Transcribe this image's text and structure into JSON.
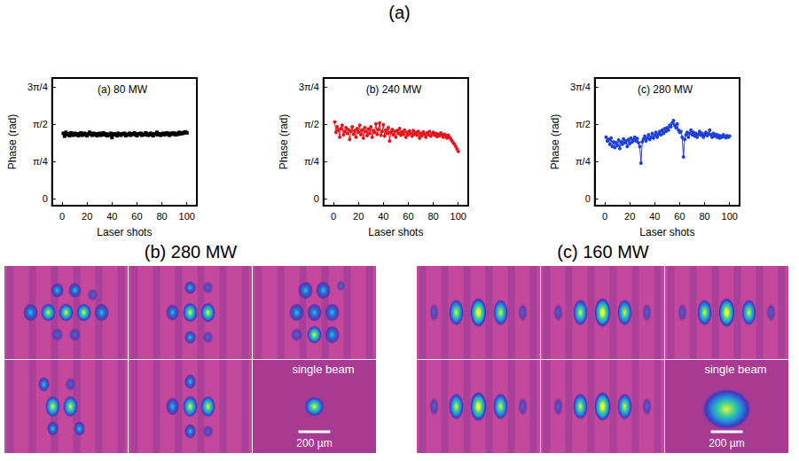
{
  "figure_title": "(a)",
  "chart_data": [
    {
      "type": "line",
      "title": "(a) 80 MW",
      "x_label": "Laser shots",
      "y_label": "Phase (rad)",
      "xlim": [
        -8,
        108
      ],
      "xticks": [
        0,
        20,
        40,
        60,
        80,
        100
      ],
      "ylim": [
        -0.15,
        2.55
      ],
      "yticks": [
        0,
        {
          "value": 0.7853981634,
          "label": "π/4"
        },
        {
          "value": 1.5707963268,
          "label": "π/2"
        },
        {
          "value": 2.3561944902,
          "label": "3π/4"
        }
      ],
      "grid": false,
      "x": [
        1,
        2,
        3,
        4,
        5,
        6,
        7,
        8,
        9,
        10,
        11,
        12,
        13,
        14,
        15,
        16,
        17,
        18,
        19,
        20,
        21,
        22,
        23,
        24,
        25,
        26,
        27,
        28,
        29,
        30,
        31,
        32,
        33,
        34,
        35,
        36,
        37,
        38,
        39,
        40,
        41,
        42,
        43,
        44,
        45,
        46,
        47,
        48,
        49,
        50,
        51,
        52,
        53,
        54,
        55,
        56,
        57,
        58,
        59,
        60,
        61,
        62,
        63,
        64,
        65,
        66,
        67,
        68,
        69,
        70,
        71,
        72,
        73,
        74,
        75,
        76,
        77,
        78,
        79,
        80,
        81,
        82,
        83,
        84,
        85,
        86,
        87,
        88,
        89,
        90,
        91,
        92,
        93,
        94,
        95,
        96,
        97,
        98,
        99,
        100
      ],
      "series": [
        {
          "color": "#000000",
          "marker": "square",
          "line_style": "solid",
          "values": [
            1.38,
            1.32,
            1.4,
            1.35,
            1.37,
            1.33,
            1.39,
            1.36,
            1.34,
            1.38,
            1.35,
            1.37,
            1.33,
            1.36,
            1.39,
            1.34,
            1.36,
            1.38,
            1.35,
            1.33,
            1.37,
            1.4,
            1.36,
            1.34,
            1.38,
            1.35,
            1.37,
            1.33,
            1.36,
            1.38,
            1.34,
            1.36,
            1.39,
            1.35,
            1.37,
            1.33,
            1.36,
            1.34,
            1.38,
            1.29,
            1.35,
            1.37,
            1.36,
            1.33,
            1.38,
            1.35,
            1.34,
            1.37,
            1.36,
            1.38,
            1.33,
            1.36,
            1.35,
            1.38,
            1.34,
            1.37,
            1.36,
            1.39,
            1.35,
            1.33,
            1.37,
            1.36,
            1.38,
            1.34,
            1.36,
            1.35,
            1.39,
            1.37,
            1.34,
            1.36,
            1.38,
            1.35,
            1.33,
            1.37,
            1.36,
            1.4,
            1.35,
            1.37,
            1.34,
            1.36,
            1.38,
            1.35,
            1.37,
            1.39,
            1.36,
            1.34,
            1.38,
            1.36,
            1.39,
            1.37,
            1.35,
            1.38,
            1.36,
            1.4,
            1.37,
            1.39,
            1.38,
            1.4,
            1.41,
            1.39
          ]
        }
      ]
    },
    {
      "type": "line",
      "title": "(b) 240 MW",
      "x_label": "Laser shots",
      "y_label": "Phase (rad)",
      "xlim": [
        -8,
        108
      ],
      "xticks": [
        0,
        20,
        40,
        60,
        80,
        100
      ],
      "ylim": [
        -0.15,
        2.55
      ],
      "yticks": [
        0,
        {
          "value": 0.7853981634,
          "label": "π/4"
        },
        {
          "value": 1.5707963268,
          "label": "π/2"
        },
        {
          "value": 2.3561944902,
          "label": "3π/4"
        }
      ],
      "grid": false,
      "x": [
        1,
        2,
        3,
        4,
        5,
        6,
        7,
        8,
        9,
        10,
        11,
        12,
        13,
        14,
        15,
        16,
        17,
        18,
        19,
        20,
        21,
        22,
        23,
        24,
        25,
        26,
        27,
        28,
        29,
        30,
        31,
        32,
        33,
        34,
        35,
        36,
        37,
        38,
        39,
        40,
        41,
        42,
        43,
        44,
        45,
        46,
        47,
        48,
        49,
        50,
        51,
        52,
        53,
        54,
        55,
        56,
        57,
        58,
        59,
        60,
        61,
        62,
        63,
        64,
        65,
        66,
        67,
        68,
        69,
        70,
        71,
        72,
        73,
        74,
        75,
        76,
        77,
        78,
        79,
        80,
        81,
        82,
        83,
        84,
        85,
        86,
        87,
        88,
        89,
        90,
        91,
        92,
        93,
        94,
        95,
        96,
        97,
        98,
        99,
        100
      ],
      "series": [
        {
          "color": "#e8141c",
          "marker": "circle",
          "line_style": "solid",
          "values": [
            1.62,
            1.4,
            1.52,
            1.45,
            1.3,
            1.48,
            1.55,
            1.35,
            1.42,
            1.5,
            1.38,
            1.46,
            1.25,
            1.42,
            1.52,
            1.36,
            1.44,
            1.3,
            1.48,
            1.4,
            1.55,
            1.35,
            1.45,
            1.28,
            1.5,
            1.42,
            1.33,
            1.47,
            1.38,
            1.52,
            1.3,
            1.44,
            1.4,
            1.58,
            1.36,
            1.46,
            1.6,
            1.34,
            1.42,
            1.56,
            1.32,
            1.45,
            1.38,
            1.5,
            1.22,
            1.4,
            1.46,
            1.35,
            1.42,
            1.3,
            1.44,
            1.38,
            1.48,
            1.34,
            1.41,
            1.36,
            1.45,
            1.3,
            1.4,
            1.35,
            1.43,
            1.38,
            1.32,
            1.44,
            1.36,
            1.4,
            1.34,
            1.42,
            1.28,
            1.38,
            1.33,
            1.41,
            1.36,
            1.3,
            1.39,
            1.35,
            1.42,
            1.32,
            1.37,
            1.4,
            1.34,
            1.38,
            1.31,
            1.36,
            1.33,
            1.39,
            1.35,
            1.3,
            1.36,
            1.33,
            1.28,
            1.34,
            1.3,
            1.26,
            1.22,
            1.18,
            1.15,
            1.1,
            1.05,
            1.0
          ]
        }
      ]
    },
    {
      "type": "line",
      "title": "(c) 280 MW",
      "x_label": "Laser shots",
      "y_label": "Phase (rad)",
      "xlim": [
        -8,
        108
      ],
      "xticks": [
        0,
        20,
        40,
        60,
        80,
        100
      ],
      "ylim": [
        -0.15,
        2.55
      ],
      "yticks": [
        0,
        {
          "value": 0.7853981634,
          "label": "π/4"
        },
        {
          "value": 1.5707963268,
          "label": "π/2"
        },
        {
          "value": 2.3561944902,
          "label": "3π/4"
        }
      ],
      "grid": false,
      "x": [
        1,
        2,
        3,
        4,
        5,
        6,
        7,
        8,
        9,
        10,
        11,
        12,
        13,
        14,
        15,
        16,
        17,
        18,
        19,
        20,
        21,
        22,
        23,
        24,
        25,
        26,
        27,
        28,
        29,
        30,
        31,
        32,
        33,
        34,
        35,
        36,
        37,
        38,
        39,
        40,
        41,
        42,
        43,
        44,
        45,
        46,
        47,
        48,
        49,
        50,
        51,
        52,
        53,
        54,
        55,
        56,
        57,
        58,
        59,
        60,
        61,
        62,
        63,
        64,
        65,
        66,
        67,
        68,
        69,
        70,
        71,
        72,
        73,
        74,
        75,
        76,
        77,
        78,
        79,
        80,
        81,
        82,
        83,
        84,
        85,
        86,
        87,
        88,
        89,
        90,
        91,
        92,
        93,
        94,
        95,
        96,
        97,
        98,
        99,
        100
      ],
      "series": [
        {
          "color": "#1e3fd8",
          "marker": "circle",
          "line_style": "solid",
          "values": [
            1.3,
            1.22,
            1.25,
            1.15,
            1.28,
            1.1,
            1.2,
            1.08,
            1.18,
            1.12,
            1.24,
            1.06,
            1.2,
            1.15,
            1.26,
            1.18,
            1.22,
            1.1,
            1.25,
            1.16,
            1.28,
            1.2,
            1.24,
            1.3,
            1.22,
            1.27,
            1.18,
            1.1,
            0.75,
            1.2,
            1.26,
            1.32,
            1.22,
            1.28,
            1.35,
            1.25,
            1.3,
            1.38,
            1.28,
            1.34,
            1.4,
            1.3,
            1.36,
            1.42,
            1.35,
            1.45,
            1.38,
            1.48,
            1.42,
            1.5,
            1.45,
            1.55,
            1.52,
            1.6,
            1.65,
            1.55,
            1.5,
            1.58,
            1.45,
            1.4,
            1.42,
            1.3,
            0.88,
            1.25,
            1.35,
            1.4,
            1.3,
            1.38,
            1.45,
            1.35,
            1.4,
            1.32,
            1.38,
            1.3,
            1.36,
            1.42,
            1.34,
            1.38,
            1.3,
            1.35,
            1.4,
            1.33,
            1.37,
            1.45,
            1.35,
            1.3,
            1.38,
            1.32,
            1.36,
            1.3,
            1.34,
            1.28,
            1.32,
            1.3,
            1.35,
            1.31,
            1.29,
            1.33,
            1.3,
            1.32
          ]
        }
      ]
    }
  ],
  "image_panels": [
    {
      "title": "(b) 280 MW",
      "inset_label": "single beam",
      "scale_bar": "200 µm"
    },
    {
      "title": "(c) 160 MW",
      "inset_label": "single beam",
      "scale_bar": "200 µm"
    }
  ]
}
